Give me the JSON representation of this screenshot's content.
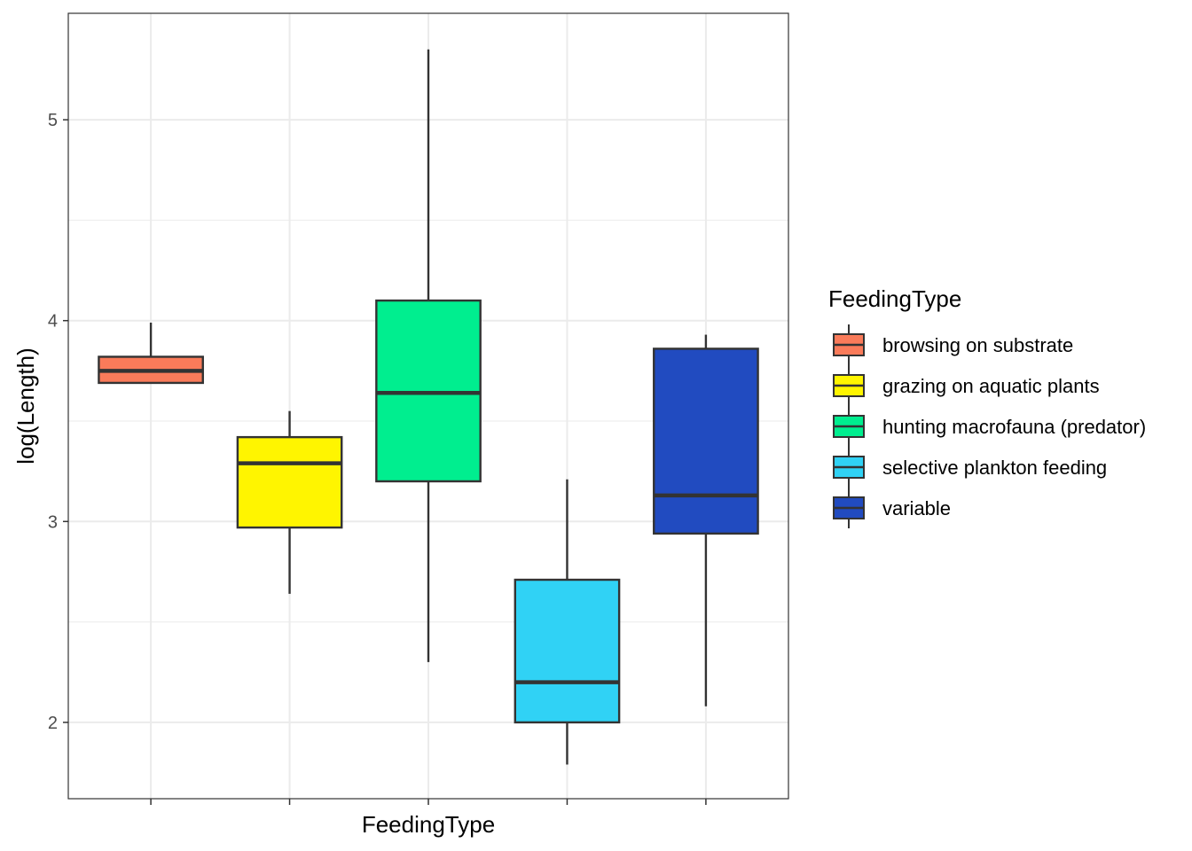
{
  "chart_data": {
    "type": "boxplot",
    "xlabel": "FeedingType",
    "ylabel": "log(Length)",
    "ylim": [
      1.62,
      5.53
    ],
    "y_ticks": [
      2,
      3,
      4,
      5
    ],
    "y_tick_labels": [
      "2",
      "3",
      "4",
      "5"
    ],
    "x_tick_labels_shown": false,
    "grid": true,
    "legend": {
      "title": "FeedingType",
      "position": "right",
      "entries": [
        {
          "label": "browsing on substrate",
          "color": "#FA7B5A"
        },
        {
          "label": "grazing on aquatic plants",
          "color": "#FFF500"
        },
        {
          "label": "hunting macrofauna (predator)",
          "color": "#00EE8F"
        },
        {
          "label": "selective plankton feeding",
          "color": "#30D2F5"
        },
        {
          "label": "variable",
          "color": "#214BC0"
        }
      ]
    },
    "categories": [
      "browsing on substrate",
      "grazing on aquatic plants",
      "hunting macrofauna (predator)",
      "selective plankton feeding",
      "variable"
    ],
    "boxes": [
      {
        "category": "browsing on substrate",
        "whisker_low": 3.69,
        "q1": 3.69,
        "median": 3.75,
        "q3": 3.82,
        "whisker_high": 3.99
      },
      {
        "category": "grazing on aquatic plants",
        "whisker_low": 2.64,
        "q1": 2.97,
        "median": 3.29,
        "q3": 3.42,
        "whisker_high": 3.55
      },
      {
        "category": "hunting macrofauna (predator)",
        "whisker_low": 2.3,
        "q1": 3.2,
        "median": 3.64,
        "q3": 4.1,
        "whisker_high": 5.35
      },
      {
        "category": "selective plankton feeding",
        "whisker_low": 1.79,
        "q1": 2.0,
        "median": 2.2,
        "q3": 2.71,
        "whisker_high": 3.21
      },
      {
        "category": "variable",
        "whisker_low": 2.08,
        "q1": 2.94,
        "median": 3.13,
        "q3": 3.86,
        "whisker_high": 3.93
      }
    ]
  }
}
